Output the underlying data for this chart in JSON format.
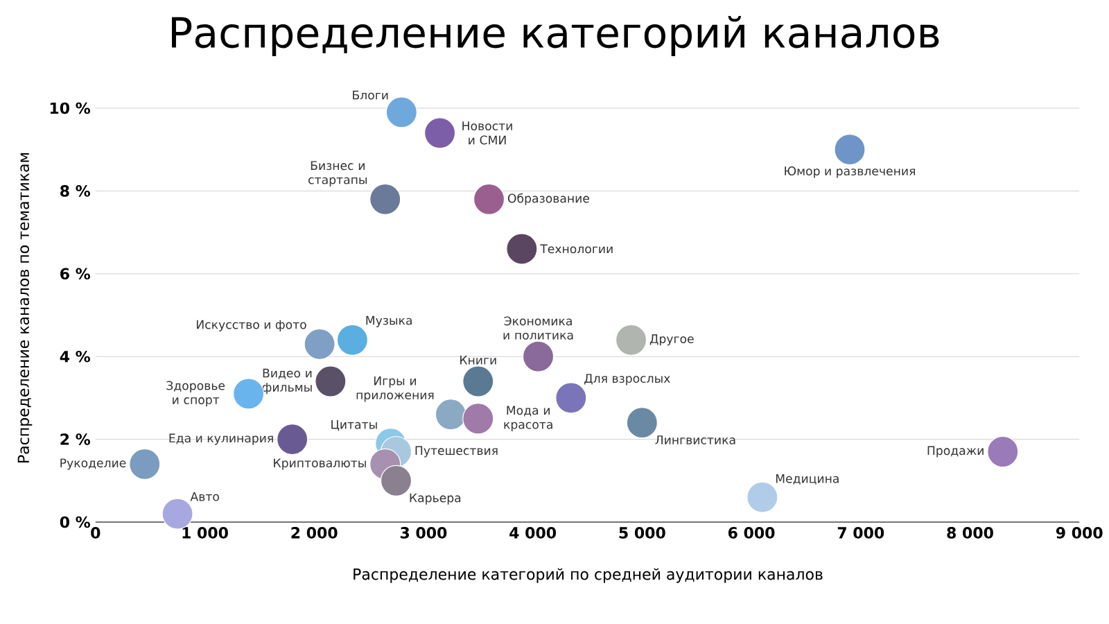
{
  "chart_data": {
    "type": "scatter",
    "title": "Распределение категорий каналов",
    "xlabel": "Распределение категорий по средней аудитории каналов",
    "ylabel": "Распределение каналов по тематикам",
    "grid": "y",
    "xlim": [
      0,
      9000
    ],
    "ylim": [
      0,
      10
    ],
    "xticks": [
      {
        "value": 0,
        "label": "0"
      },
      {
        "value": 1000,
        "label": "1 000"
      },
      {
        "value": 2000,
        "label": "2 000"
      },
      {
        "value": 3000,
        "label": "3 000"
      },
      {
        "value": 4000,
        "label": "4 000"
      },
      {
        "value": 5000,
        "label": "5 000"
      },
      {
        "value": 6000,
        "label": "6 000"
      },
      {
        "value": 7000,
        "label": "7 000"
      },
      {
        "value": 8000,
        "label": "8 000"
      },
      {
        "value": 9000,
        "label": "9 000"
      }
    ],
    "yticks": [
      {
        "value": 0,
        "label": "0 %"
      },
      {
        "value": 2,
        "label": "2 %"
      },
      {
        "value": 4,
        "label": "4 %"
      },
      {
        "value": 6,
        "label": "6 %"
      },
      {
        "value": 8,
        "label": "8 %"
      },
      {
        "value": 10,
        "label": "10 %"
      }
    ],
    "series": [
      {
        "name": "Блоги",
        "color": "#6fa8dc",
        "x": [
          2800
        ],
        "values": [
          9.9
        ]
      },
      {
        "name": "Новости и СМИ",
        "color": "#7b5ea7",
        "x": [
          3150
        ],
        "values": [
          9.4
        ]
      },
      {
        "name": "Юмор и развлечения",
        "color": "#6f94c8",
        "x": [
          6900
        ],
        "values": [
          9.0
        ]
      },
      {
        "name": "Бизнес и стартапы",
        "color": "#6b7a99",
        "x": [
          2650
        ],
        "values": [
          7.8
        ]
      },
      {
        "name": "Образование",
        "color": "#9b5f8f",
        "x": [
          3600
        ],
        "values": [
          7.8
        ]
      },
      {
        "name": "Технологии",
        "color": "#5a4660",
        "x": [
          3900
        ],
        "values": [
          6.6
        ]
      },
      {
        "name": "Искусство и фото",
        "color": "#7f9fc4",
        "x": [
          2050
        ],
        "values": [
          4.3
        ]
      },
      {
        "name": "Музыка",
        "color": "#5aaee0",
        "x": [
          2350
        ],
        "values": [
          4.4
        ]
      },
      {
        "name": "Экономика и политика",
        "color": "#8a6a9a",
        "x": [
          4050
        ],
        "values": [
          4.0
        ]
      },
      {
        "name": "Другое",
        "color": "#b0b5b0",
        "x": [
          4900
        ],
        "values": [
          4.4
        ]
      },
      {
        "name": "Книги",
        "color": "#5a7a94",
        "x": [
          3500
        ],
        "values": [
          3.4
        ]
      },
      {
        "name": "Видео и фильмы",
        "color": "#5a5068",
        "x": [
          2150
        ],
        "values": [
          3.4
        ]
      },
      {
        "name": "Здоровье и спорт",
        "color": "#6ab4ee",
        "x": [
          1400
        ],
        "values": [
          3.1
        ]
      },
      {
        "name": "Для взрослых",
        "color": "#7a74b8",
        "x": [
          4350
        ],
        "values": [
          3.0
        ]
      },
      {
        "name": "Игры и приложения",
        "color": "#8aaac4",
        "x": [
          3250
        ],
        "values": [
          2.6
        ]
      },
      {
        "name": "Мода и красота",
        "color": "#a07aa8",
        "x": [
          3500
        ],
        "values": [
          2.5
        ]
      },
      {
        "name": "Лингвистика",
        "color": "#6a8aa4",
        "x": [
          5000
        ],
        "values": [
          2.4
        ]
      },
      {
        "name": "Еда и кулинария",
        "color": "#6a5a94",
        "x": [
          1800
        ],
        "values": [
          2.0
        ]
      },
      {
        "name": "Цитаты",
        "color": "#8cc8e8",
        "x": [
          2700
        ],
        "values": [
          1.9
        ]
      },
      {
        "name": "Путешествия",
        "color": "#a8c8e0",
        "x": [
          2750
        ],
        "values": [
          1.7
        ]
      },
      {
        "name": "Криптовалюты",
        "color": "#a890b0",
        "x": [
          2650
        ],
        "values": [
          1.4
        ]
      },
      {
        "name": "Карьера",
        "color": "#8a8090",
        "x": [
          2750
        ],
        "values": [
          1.0
        ]
      },
      {
        "name": "Рукоделие",
        "color": "#7a9cc0",
        "x": [
          450
        ],
        "values": [
          1.4
        ]
      },
      {
        "name": "Авто",
        "color": "#a8a8e0",
        "x": [
          750
        ],
        "values": [
          0.2
        ]
      },
      {
        "name": "Медицина",
        "color": "#b0cce8",
        "x": [
          6100
        ],
        "values": [
          0.6
        ]
      },
      {
        "name": "Продажи",
        "color": "#9a7ab8",
        "x": [
          8300
        ],
        "values": [
          1.7
        ]
      }
    ]
  }
}
